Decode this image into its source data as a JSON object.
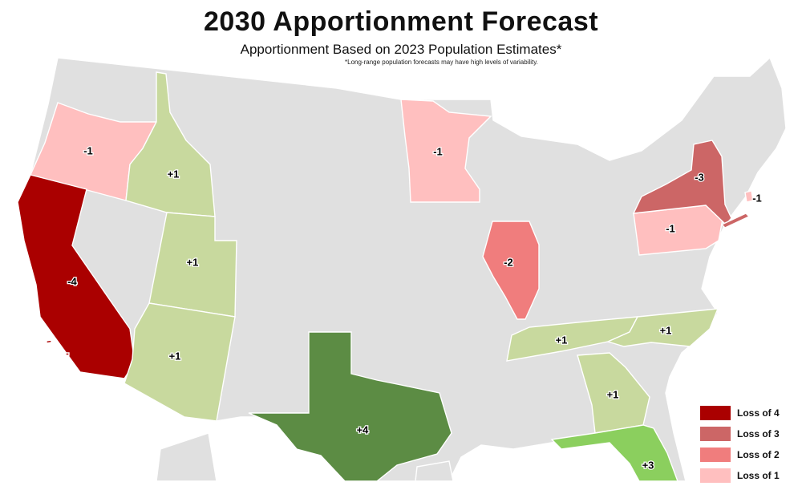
{
  "title": "2030 Apportionment Forecast",
  "subtitle": "Apportionment Based on 2023 Population Estimates*",
  "footnote": "*Long-range population forecasts may have high levels of variability.",
  "colors": {
    "base": "#e0e0e0",
    "loss4": "#aa0000",
    "loss3": "#cc6666",
    "loss2": "#f07d7d",
    "loss1": "#ffbfbf",
    "gain1": "#c8d99e",
    "gain3": "#8bcf5e",
    "gain4": "#5c8c44"
  },
  "states": [
    {
      "name": "California",
      "change": "-4",
      "category": "loss4"
    },
    {
      "name": "New York",
      "change": "-3",
      "category": "loss3"
    },
    {
      "name": "Illinois",
      "change": "-2",
      "category": "loss2"
    },
    {
      "name": "Oregon",
      "change": "-1",
      "category": "loss1"
    },
    {
      "name": "Minnesota",
      "change": "-1",
      "category": "loss1"
    },
    {
      "name": "Pennsylvania",
      "change": "-1",
      "category": "loss1"
    },
    {
      "name": "Rhode Island",
      "change": "-1",
      "category": "loss1"
    },
    {
      "name": "Idaho",
      "change": "+1",
      "category": "gain1"
    },
    {
      "name": "Utah",
      "change": "+1",
      "category": "gain1"
    },
    {
      "name": "Arizona",
      "change": "+1",
      "category": "gain1"
    },
    {
      "name": "Tennessee",
      "change": "+1",
      "category": "gain1"
    },
    {
      "name": "North Carolina",
      "change": "+1",
      "category": "gain1"
    },
    {
      "name": "Georgia",
      "change": "+1",
      "category": "gain1"
    },
    {
      "name": "Florida",
      "change": "+3",
      "category": "gain3"
    },
    {
      "name": "Texas",
      "change": "+4",
      "category": "gain4"
    }
  ],
  "legend": [
    {
      "label": "Loss of 4",
      "category": "loss4"
    },
    {
      "label": "Loss of 3",
      "category": "loss3"
    },
    {
      "label": "Loss of 2",
      "category": "loss2"
    },
    {
      "label": "Loss of 1",
      "category": "loss1"
    }
  ]
}
